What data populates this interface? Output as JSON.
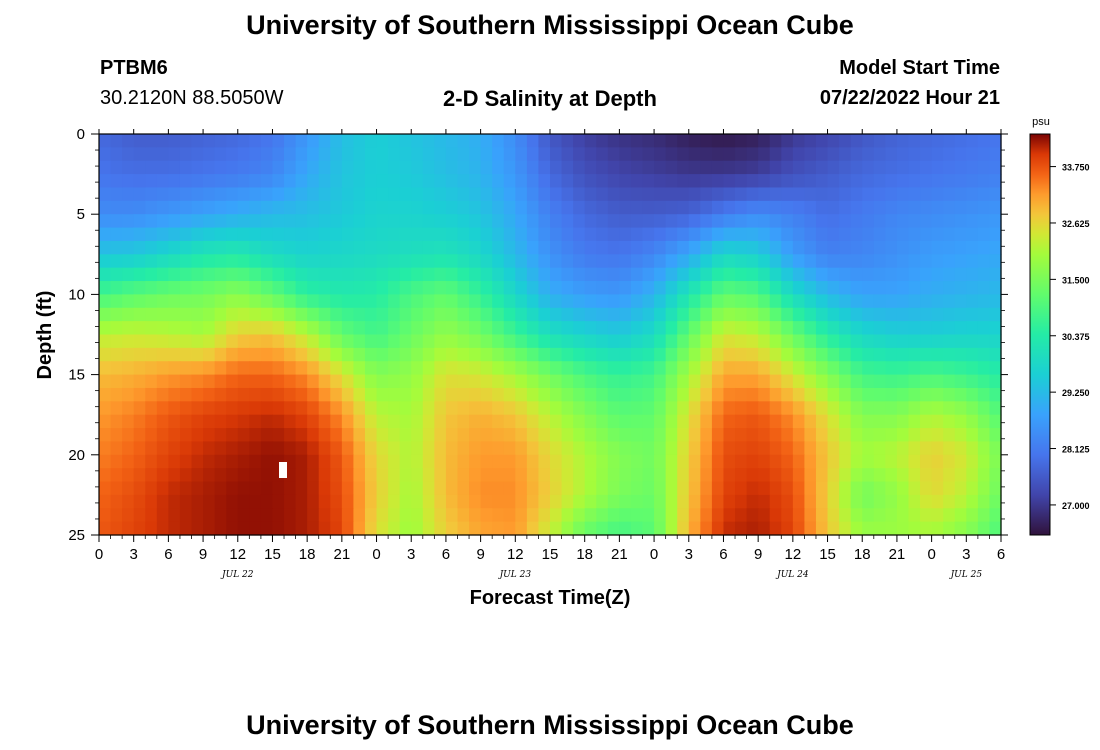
{
  "page": {
    "title": "University of Southern Mississippi Ocean Cube",
    "footer_title": "University of Southern Mississippi Ocean Cube",
    "station_id": "PTBM6",
    "station_coords": "30.2120N  88.5050W",
    "chart_title": "2-D Salinity at Depth",
    "model_start_label": "Model Start Time",
    "model_start_value": "07/22/2022 Hour 21"
  },
  "chart_data": {
    "type": "heatmap",
    "title": "2-D Salinity at Depth",
    "xlabel": "Forecast Time(Z)",
    "ylabel": "Depth (ft)",
    "x_range_hours": [
      0,
      78
    ],
    "y_range_ft": [
      0,
      25
    ],
    "y_inverted": true,
    "x_tick_labels": [
      "0",
      "3",
      "6",
      "9",
      "12",
      "15",
      "18",
      "21",
      "0",
      "3",
      "6",
      "9",
      "12",
      "15",
      "18",
      "21",
      "0",
      "3",
      "6",
      "9",
      "12",
      "15",
      "18",
      "21",
      "0",
      "3",
      "6"
    ],
    "y_tick_labels": [
      "0",
      "5",
      "10",
      "15",
      "20",
      "25"
    ],
    "date_labels": [
      {
        "label": "JUL 22",
        "hour": 12
      },
      {
        "label": "JUL 23",
        "hour": 36
      },
      {
        "label": "JUL 24",
        "hour": 60
      },
      {
        "label": "JUL 25",
        "hour": 75
      }
    ],
    "colorbar": {
      "units": "psu",
      "min": 26.4,
      "max": 34.4,
      "tick_labels": [
        "33.750",
        "32.625",
        "31.500",
        "30.375",
        "29.250",
        "28.125",
        "27.000"
      ],
      "ticks": [
        33.75,
        32.625,
        31.5,
        30.375,
        29.25,
        28.125,
        27.0
      ]
    },
    "grid_hours": [
      0,
      3,
      6,
      9,
      12,
      15,
      18,
      21,
      24,
      27,
      30,
      33,
      36,
      39,
      42,
      45,
      48,
      51,
      54,
      57,
      60,
      63,
      66,
      69,
      72,
      75,
      78
    ],
    "grid_depths_ft": [
      0,
      2.5,
      5,
      7.5,
      10,
      12.5,
      15,
      17.5,
      20,
      22.5,
      25
    ],
    "salinity_psu": [
      [
        27.8,
        27.6,
        27.6,
        27.7,
        27.8,
        28.0,
        28.6,
        29.3,
        29.6,
        29.4,
        29.2,
        29.0,
        28.4,
        27.5,
        27.1,
        26.9,
        26.8,
        26.6,
        26.5,
        26.6,
        27.0,
        27.2,
        27.5,
        27.7,
        27.8,
        27.9,
        28.0
      ],
      [
        28.0,
        27.9,
        27.9,
        28.0,
        28.1,
        28.3,
        28.9,
        29.4,
        29.6,
        29.5,
        29.3,
        29.1,
        28.6,
        27.8,
        27.4,
        27.2,
        27.1,
        27.0,
        27.0,
        27.1,
        27.4,
        27.6,
        27.8,
        27.9,
        28.0,
        28.1,
        28.2
      ],
      [
        28.4,
        28.4,
        28.6,
        28.8,
        29.0,
        29.2,
        29.3,
        29.5,
        29.7,
        29.7,
        29.6,
        29.4,
        28.9,
        28.2,
        27.8,
        27.6,
        27.6,
        27.7,
        28.1,
        28.4,
        28.2,
        27.9,
        28.1,
        28.3,
        28.4,
        28.5,
        28.6
      ],
      [
        29.4,
        29.5,
        29.8,
        30.2,
        30.3,
        29.9,
        29.7,
        29.8,
        29.9,
        30.0,
        30.1,
        29.8,
        29.2,
        28.5,
        28.1,
        28.0,
        28.3,
        28.9,
        29.8,
        29.6,
        28.7,
        28.2,
        28.3,
        28.5,
        28.7,
        28.8,
        28.9
      ],
      [
        30.8,
        31.1,
        31.3,
        31.4,
        31.7,
        31.2,
        30.5,
        30.3,
        30.4,
        30.9,
        31.2,
        30.6,
        29.8,
        29.0,
        28.7,
        28.6,
        29.1,
        30.2,
        31.2,
        31.0,
        29.9,
        29.2,
        28.8,
        28.8,
        29.0,
        29.1,
        29.2
      ],
      [
        32.2,
        32.3,
        32.2,
        32.0,
        32.7,
        32.8,
        32.2,
        31.2,
        30.8,
        31.3,
        31.8,
        31.4,
        30.7,
        30.0,
        29.7,
        29.5,
        29.9,
        31.2,
        32.4,
        32.2,
        31.3,
        30.4,
        29.8,
        29.6,
        29.6,
        29.7,
        29.7
      ],
      [
        32.9,
        33.0,
        33.2,
        33.3,
        33.6,
        33.6,
        33.3,
        32.5,
        31.6,
        31.8,
        32.5,
        32.4,
        32.0,
        31.4,
        30.9,
        30.6,
        30.8,
        32.0,
        33.1,
        33.1,
        32.4,
        31.6,
        30.8,
        30.7,
        30.9,
        30.7,
        30.4
      ],
      [
        33.2,
        33.4,
        33.7,
        33.9,
        34.0,
        34.1,
        33.9,
        33.3,
        32.2,
        32.0,
        32.8,
        33.0,
        32.8,
        32.2,
        31.6,
        31.1,
        31.2,
        32.5,
        33.6,
        33.7,
        33.3,
        32.5,
        31.6,
        31.6,
        32.1,
        31.8,
        31.0
      ],
      [
        33.4,
        33.6,
        33.9,
        34.1,
        34.2,
        34.3,
        34.2,
        33.7,
        32.6,
        32.1,
        32.9,
        33.2,
        33.2,
        32.6,
        32.1,
        31.6,
        31.4,
        32.7,
        33.8,
        33.9,
        33.6,
        32.8,
        32.0,
        32.2,
        32.7,
        32.4,
        31.5
      ],
      [
        33.6,
        33.8,
        34.1,
        34.2,
        34.3,
        34.3,
        34.2,
        33.8,
        32.7,
        32.0,
        32.9,
        33.3,
        33.3,
        32.7,
        32.1,
        31.5,
        31.3,
        32.8,
        33.9,
        34.1,
        33.8,
        32.7,
        31.4,
        31.8,
        32.6,
        32.2,
        31.3
      ],
      [
        33.7,
        33.9,
        34.1,
        34.2,
        34.3,
        34.3,
        34.2,
        33.9,
        32.5,
        31.9,
        32.7,
        33.1,
        33.2,
        32.3,
        31.2,
        30.8,
        31.1,
        33.0,
        34.1,
        34.2,
        33.9,
        32.8,
        31.9,
        31.9,
        32.0,
        31.6,
        30.9
      ]
    ]
  }
}
